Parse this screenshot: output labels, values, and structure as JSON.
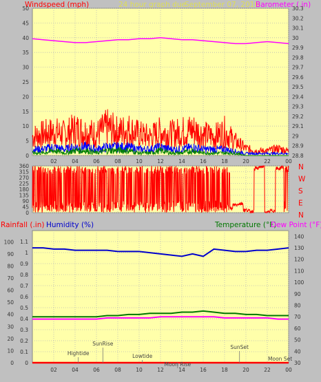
{
  "header": {
    "left": "Windspeed (mph)",
    "center": "24 hour graph due",
    "date": "September 07, 2016",
    "right": "Barometer (.in)"
  },
  "colors": {
    "background": "#c0c0c0",
    "plot": "#ffffaa",
    "wind": "#ff0000",
    "wind_avg": "#0000ff",
    "wind_low": "#008000",
    "barometer": "#ff00ff",
    "humidity": "#0000cc",
    "temperature": "#007700",
    "dewpoint": "#ff00ff",
    "rain": "#ff0000"
  },
  "labels": {
    "rain": "Rainfall (.in)",
    "humidity": "Humidity (%)",
    "temperature": "Temperature (°F)",
    "dewpoint": "Dew Point (°F)"
  },
  "compass": [
    "N",
    "W",
    "S",
    "E",
    "N"
  ],
  "chart_data": [
    {
      "type": "line",
      "name": "windspeed-barometer",
      "x_ticks": [
        "02",
        "04",
        "06",
        "08",
        "10",
        "12",
        "14",
        "16",
        "18",
        "20",
        "22",
        "00"
      ],
      "y_left": {
        "title": "Windspeed (mph)",
        "ticks": [
          0,
          5,
          10,
          15,
          20,
          25,
          30,
          35,
          40,
          45,
          50
        ],
        "range": [
          0,
          50
        ]
      },
      "y_right": {
        "title": "Barometer (.in)",
        "ticks": [
          "28.8",
          "28.9",
          "29",
          "29.1",
          "29.2",
          "29.3",
          "29.4",
          "29.5",
          "29.6",
          "29.7",
          "29.8",
          "29.9",
          "30",
          "30.1",
          "30.2",
          "30.3"
        ],
        "range": [
          28.8,
          30.3
        ]
      },
      "series": [
        {
          "name": "Barometer (.in)",
          "axis": "right",
          "x": [
            0,
            1,
            2,
            3,
            4,
            5,
            6,
            7,
            8,
            9,
            10,
            11,
            12,
            13,
            14,
            15,
            16,
            17,
            18,
            19,
            20,
            21,
            22,
            23,
            24
          ],
          "values": [
            29.99,
            29.98,
            29.97,
            29.96,
            29.95,
            29.95,
            29.96,
            29.97,
            29.98,
            29.98,
            29.99,
            29.99,
            30.0,
            29.99,
            29.98,
            29.98,
            29.97,
            29.96,
            29.95,
            29.94,
            29.94,
            29.95,
            29.96,
            29.95,
            29.94
          ]
        },
        {
          "name": "Gust",
          "axis": "left",
          "x": [
            0,
            1,
            2,
            3,
            4,
            5,
            6,
            7,
            8,
            9,
            10,
            11,
            12,
            13,
            14,
            15,
            16,
            17,
            18,
            19,
            20,
            21,
            22,
            23,
            24
          ],
          "values": [
            8,
            9,
            10,
            9,
            11,
            10,
            9,
            12,
            10,
            11,
            9,
            8,
            10,
            9,
            10,
            11,
            9,
            8,
            10,
            6,
            3,
            2,
            2,
            3,
            2
          ]
        },
        {
          "name": "Average",
          "axis": "left",
          "x": [
            0,
            1,
            2,
            3,
            4,
            5,
            6,
            7,
            8,
            9,
            10,
            11,
            12,
            13,
            14,
            15,
            16,
            17,
            18,
            19,
            20,
            21,
            22,
            23,
            24
          ],
          "values": [
            3,
            3,
            4,
            3,
            4,
            4,
            3,
            4,
            4,
            4,
            3,
            3,
            4,
            3,
            3,
            4,
            3,
            3,
            3,
            2,
            1,
            1,
            1,
            1,
            1
          ]
        },
        {
          "name": "Low",
          "axis": "left",
          "x": [
            0,
            1,
            2,
            3,
            4,
            5,
            6,
            7,
            8,
            9,
            10,
            11,
            12,
            13,
            14,
            15,
            16,
            17,
            18,
            19,
            20,
            21,
            22,
            23,
            24
          ],
          "values": [
            1,
            1,
            2,
            1,
            2,
            2,
            1,
            2,
            2,
            2,
            1,
            1,
            2,
            1,
            1,
            2,
            1,
            1,
            1,
            1,
            0,
            0,
            0,
            0,
            0
          ]
        }
      ]
    },
    {
      "type": "line",
      "name": "wind-direction",
      "y_left": {
        "ticks": [
          0,
          45,
          90,
          135,
          180,
          225,
          270,
          315,
          360
        ],
        "range": [
          0,
          360
        ]
      },
      "series": [
        {
          "name": "Direction",
          "x": [
            0,
            0.5,
            1,
            1.5,
            2,
            2.5,
            3,
            3.5,
            4,
            4.5,
            5,
            5.5,
            6,
            6.5,
            7,
            7.5,
            8,
            8.5,
            9,
            9.5,
            10,
            10.5,
            11,
            11.5,
            12,
            12.5,
            13,
            13.5,
            14,
            14.5,
            15,
            15.5,
            16,
            16.5,
            17,
            17.5,
            18,
            18.5,
            19,
            19.5,
            20,
            20.5,
            21,
            21.5,
            22,
            22.5,
            23,
            23.5,
            24
          ],
          "values": [
            45,
            340,
            60,
            300,
            90,
            345,
            80,
            20,
            320,
            100,
            340,
            60,
            350,
            70,
            330,
            40,
            355,
            80,
            20,
            340,
            60,
            345,
            90,
            340,
            30,
            345,
            70,
            340,
            60,
            350,
            40,
            80,
            60,
            90,
            70,
            50,
            60,
            30,
            60,
            70,
            20,
            10,
            340,
            355,
            0,
            15,
            340,
            350,
            345
          ]
        }
      ]
    },
    {
      "type": "line",
      "name": "rain-humidity-temperature",
      "x_ticks": [
        "02",
        "04",
        "06",
        "08",
        "10",
        "12",
        "14",
        "16",
        "18",
        "20",
        "22",
        "00"
      ],
      "y_left": {
        "title": "Rainfall (.in)",
        "ticks": [
          "0",
          "0.1",
          "0.2",
          "0.3",
          "0.4",
          "0.5",
          "0.6",
          "0.7",
          "0.8",
          "0.9",
          "1",
          "1.1"
        ],
        "range": [
          0,
          1.2
        ]
      },
      "y_left2": {
        "title": "Humidity (%)",
        "ticks": [
          0,
          10,
          20,
          30,
          40,
          50,
          60,
          70,
          80,
          90,
          100
        ],
        "range": [
          0,
          100
        ]
      },
      "y_right": {
        "title": "Temperature (°F)",
        "ticks": [
          30,
          40,
          50,
          60,
          70,
          80,
          90,
          100,
          110,
          120,
          130,
          140
        ],
        "range": [
          30,
          145
        ]
      },
      "series": [
        {
          "name": "Humidity (%)",
          "axis": "left2",
          "x": [
            0,
            1,
            2,
            3,
            4,
            5,
            6,
            7,
            8,
            9,
            10,
            11,
            12,
            13,
            14,
            15,
            16,
            17,
            18,
            19,
            20,
            21,
            22,
            23,
            24
          ],
          "values": [
            95,
            95,
            94,
            94,
            93,
            93,
            93,
            93,
            92,
            92,
            92,
            91,
            90,
            89,
            88,
            90,
            88,
            94,
            93,
            92,
            92,
            93,
            93,
            94,
            95
          ]
        },
        {
          "name": "Temperature (°F)",
          "axis": "right",
          "x": [
            0,
            1,
            2,
            3,
            4,
            5,
            6,
            7,
            8,
            9,
            10,
            11,
            12,
            13,
            14,
            15,
            16,
            17,
            18,
            19,
            20,
            21,
            22,
            23,
            24
          ],
          "values": [
            70,
            70,
            70,
            70,
            70,
            70,
            70,
            71,
            71,
            72,
            72,
            73,
            73,
            73,
            74,
            74,
            75,
            74,
            73,
            73,
            72,
            72,
            71,
            71,
            71
          ]
        },
        {
          "name": "Dew Point (°F)",
          "axis": "right",
          "x": [
            0,
            1,
            2,
            3,
            4,
            5,
            6,
            7,
            8,
            9,
            10,
            11,
            12,
            13,
            14,
            15,
            16,
            17,
            18,
            19,
            20,
            21,
            22,
            23,
            24
          ],
          "values": [
            68,
            68,
            68,
            68,
            68,
            68,
            68,
            69,
            69,
            69,
            69,
            69,
            70,
            70,
            70,
            70,
            70,
            70,
            69,
            69,
            69,
            69,
            69,
            68,
            68
          ]
        },
        {
          "name": "Rainfall (.in)",
          "axis": "left",
          "x": [
            0,
            24
          ],
          "values": [
            0,
            0
          ]
        }
      ],
      "events": [
        {
          "label": "Hightide",
          "x": 4.3
        },
        {
          "label": "SunRise",
          "x": 6.6
        },
        {
          "label": "Lowtide",
          "x": 10.3
        },
        {
          "label": "Moon Rise",
          "x": 13.6
        },
        {
          "label": "SunSet",
          "x": 19.4
        },
        {
          "label": "Moon Set",
          "x": 23.2
        }
      ]
    }
  ]
}
